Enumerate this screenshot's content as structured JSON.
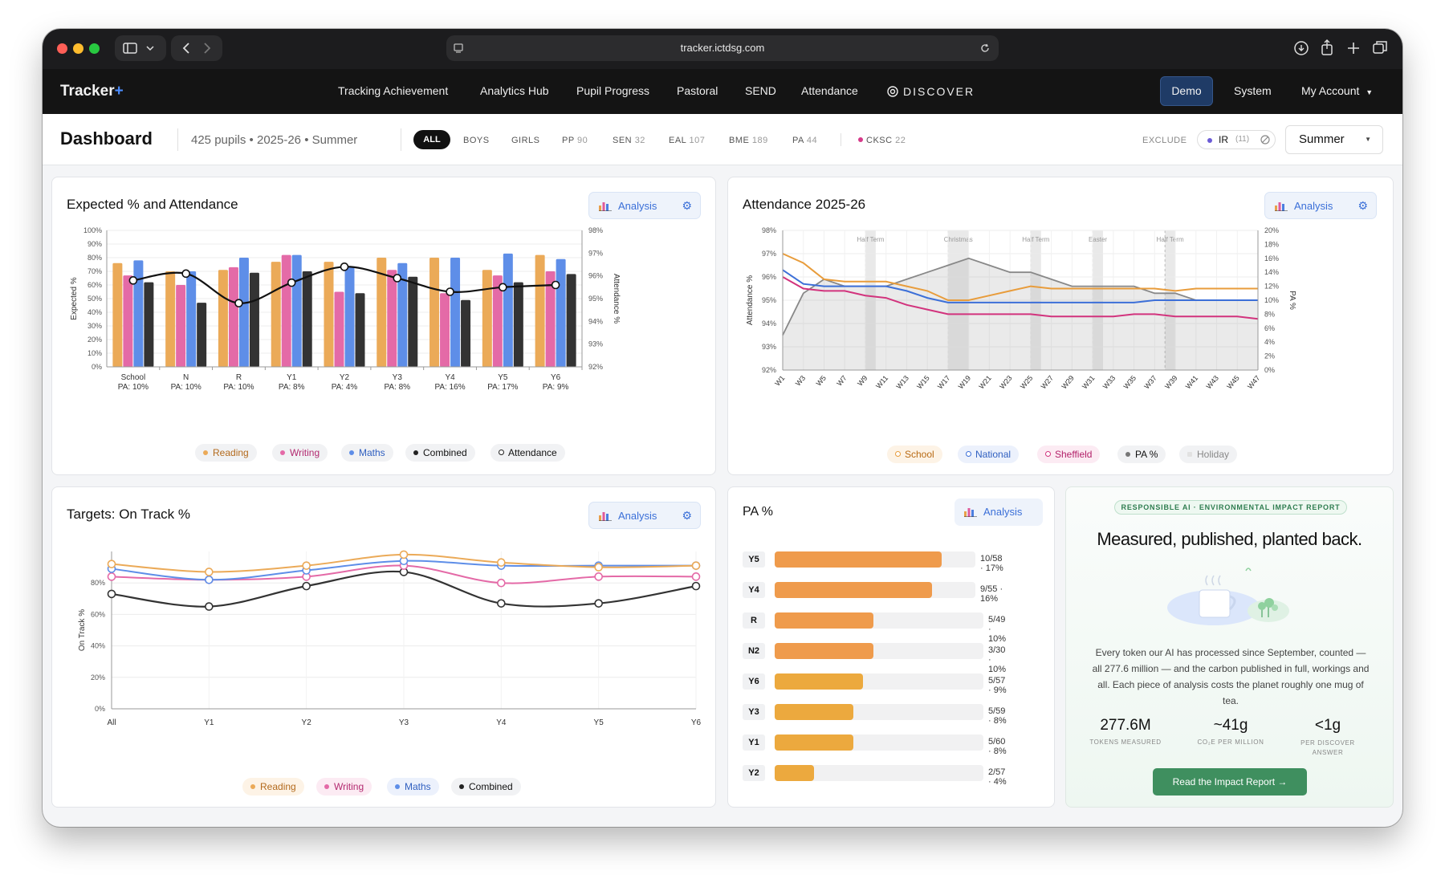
{
  "browser": {
    "url": "tracker.ictdsg.com"
  },
  "app": {
    "logo": "Tracker",
    "logo_plus": "+"
  },
  "nav": {
    "items": [
      "Tracking Achievement",
      "Analytics Hub",
      "Pupil Progress",
      "Pastoral",
      "SEND",
      "Attendance"
    ],
    "discover": "DISCOVER",
    "demo": "Demo",
    "system": "System",
    "account": "My Account"
  },
  "subheader": {
    "title": "Dashboard",
    "meta": "425 pupils • 2025-26 • Summer",
    "filters": [
      {
        "label": "ALL",
        "count": ""
      },
      {
        "label": "BOYS",
        "count": ""
      },
      {
        "label": "GIRLS",
        "count": ""
      },
      {
        "label": "PP",
        "count": "90"
      },
      {
        "label": "SEN",
        "count": "32"
      },
      {
        "label": "EAL",
        "count": "107"
      },
      {
        "label": "BME",
        "count": "189"
      },
      {
        "label": "PA",
        "count": "44"
      },
      {
        "label": "CKSC",
        "count": "22"
      }
    ],
    "exclude_label": "EXCLUDE",
    "exclude_tag": "IR",
    "exclude_count": "(11)",
    "term": "Summer",
    "colors": {
      "cksc_dot": "#d63a8a",
      "ir_dot": "#6b5bd6"
    }
  },
  "analysis_label": "Analysis",
  "colors": {
    "reading": "#ebaa58",
    "writing": "#e46aa7",
    "maths": "#5e8ee8",
    "combined": "#333333",
    "school": "#e89c3b",
    "national": "#3c6fd8",
    "sheffield": "#d2337d",
    "pa": "#888888",
    "pa_bar_high": "#ef9b4c",
    "pa_bar_low": "#eca93e",
    "accent_green": "#3f8f5f"
  },
  "chart_data": [
    {
      "type": "bar",
      "title": "Expected % and Attendance",
      "ylabel": "Expected %",
      "y2label": "Attendance %",
      "ylim": [
        0,
        100
      ],
      "y2lim": [
        92,
        98
      ],
      "yticks": [
        "0%",
        "10%",
        "20%",
        "30%",
        "40%",
        "50%",
        "60%",
        "70%",
        "80%",
        "90%",
        "100%"
      ],
      "y2ticks": [
        "92%",
        "93%",
        "94%",
        "95%",
        "96%",
        "97%",
        "98%"
      ],
      "categories": [
        "School",
        "N",
        "R",
        "Y1",
        "Y2",
        "Y3",
        "Y4",
        "Y5",
        "Y6"
      ],
      "subcategories": [
        "PA: 10%",
        "PA: 10%",
        "PA: 10%",
        "PA: 8%",
        "PA: 4%",
        "PA: 8%",
        "PA: 16%",
        "PA: 17%",
        "PA: 9%"
      ],
      "series": [
        {
          "name": "Reading",
          "values": [
            76,
            70,
            71,
            77,
            77,
            80,
            80,
            71,
            82
          ]
        },
        {
          "name": "Writing",
          "values": [
            67,
            60,
            73,
            82,
            55,
            71,
            54,
            67,
            70
          ]
        },
        {
          "name": "Maths",
          "values": [
            78,
            70,
            80,
            82,
            73,
            76,
            80,
            83,
            79
          ]
        },
        {
          "name": "Combined",
          "values": [
            62,
            47,
            69,
            70,
            54,
            66,
            49,
            62,
            68
          ]
        },
        {
          "name": "Attendance",
          "values": [
            95.8,
            96.1,
            94.8,
            95.7,
            96.4,
            95.9,
            95.3,
            95.5,
            95.6
          ]
        }
      ],
      "legend_position": "bottom"
    },
    {
      "type": "line",
      "title": "Attendance 2025-26",
      "ylabel": "Attendance %",
      "y2label": "PA %",
      "ylim": [
        92,
        98
      ],
      "y2lim": [
        0,
        20
      ],
      "yticks": [
        "92%",
        "93%",
        "94%",
        "95%",
        "96%",
        "97%",
        "98%"
      ],
      "y2ticks": [
        "0%",
        "2%",
        "4%",
        "6%",
        "8%",
        "10%",
        "12%",
        "14%",
        "16%",
        "18%",
        "20%"
      ],
      "x": [
        "W1",
        "W3",
        "W5",
        "W7",
        "W9",
        "W11",
        "W13",
        "W15",
        "W17",
        "W19",
        "W21",
        "W23",
        "W25",
        "W27",
        "W29",
        "W31",
        "W33",
        "W35",
        "W37",
        "W39",
        "W41",
        "W43",
        "W45",
        "W47"
      ],
      "holidays": [
        "Half Term",
        "Christmas",
        "Half Term",
        "Easter",
        "Half Term"
      ],
      "series": [
        {
          "name": "School",
          "values": [
            97.0,
            96.6,
            95.9,
            95.8,
            95.8,
            95.8,
            95.6,
            95.4,
            95.0,
            95.0,
            95.2,
            95.4,
            95.6,
            95.5,
            95.5,
            95.5,
            95.5,
            95.5,
            95.5,
            95.4,
            95.5,
            95.5,
            95.5,
            95.5
          ]
        },
        {
          "name": "National",
          "values": [
            96.3,
            95.7,
            95.6,
            95.6,
            95.6,
            95.6,
            95.4,
            95.1,
            94.9,
            94.9,
            94.9,
            94.9,
            94.9,
            94.9,
            94.9,
            94.9,
            94.9,
            94.9,
            95.0,
            95.0,
            95.0,
            95.0,
            95.0,
            95.0
          ]
        },
        {
          "name": "Sheffield",
          "values": [
            96.0,
            95.5,
            95.4,
            95.4,
            95.2,
            95.1,
            94.8,
            94.6,
            94.4,
            94.4,
            94.4,
            94.4,
            94.4,
            94.3,
            94.3,
            94.3,
            94.3,
            94.4,
            94.4,
            94.3,
            94.3,
            94.3,
            94.3,
            94.2
          ]
        },
        {
          "name": "PA %",
          "values": [
            5,
            11,
            13,
            12,
            12,
            12,
            13,
            14,
            15,
            16,
            15,
            14,
            14,
            13,
            12,
            12,
            12,
            12,
            11,
            11,
            10,
            10,
            10,
            10
          ]
        }
      ],
      "legend": [
        "School",
        "National",
        "Sheffield",
        "PA %",
        "Holiday"
      ],
      "legend_position": "bottom"
    },
    {
      "type": "line",
      "title": "Targets: On Track %",
      "ylabel": "On Track %",
      "ylim": [
        0,
        100
      ],
      "yticks": [
        "0%",
        "20%",
        "40%",
        "60%",
        "80%"
      ],
      "x": [
        "All",
        "Y1",
        "Y2",
        "Y3",
        "Y4",
        "Y5",
        "Y6"
      ],
      "series": [
        {
          "name": "Reading",
          "values": [
            92,
            87,
            91,
            98,
            93,
            90,
            91
          ]
        },
        {
          "name": "Writing",
          "values": [
            84,
            82,
            84,
            91,
            80,
            84,
            84
          ]
        },
        {
          "name": "Maths",
          "values": [
            89,
            82,
            88,
            94,
            91,
            91,
            91
          ]
        },
        {
          "name": "Combined",
          "values": [
            73,
            65,
            78,
            87,
            67,
            67,
            78
          ]
        }
      ],
      "legend_position": "bottom"
    },
    {
      "type": "bar",
      "title": "PA %",
      "orientation": "horizontal",
      "categories": [
        "Y5",
        "Y4",
        "R",
        "N2",
        "Y6",
        "Y3",
        "Y1",
        "Y2"
      ],
      "values": [
        17,
        16,
        10,
        10,
        9,
        8,
        8,
        4
      ],
      "labels": [
        "10/58 · 17%",
        "9/55 · 16%",
        "5/49 · 10%",
        "3/30 · 10%",
        "5/57 · 9%",
        "5/59 · 8%",
        "5/60 · 8%",
        "2/57 · 4%"
      ]
    }
  ],
  "impact": {
    "badge": "RESPONSIBLE AI · ENVIRONMENTAL IMPACT REPORT",
    "title": "Measured, published, planted back.",
    "body": "Every token our AI has processed since September, counted — all 277.6 million — and the carbon published in full, workings and all. Each piece of analysis costs the planet roughly one mug of tea.",
    "stats": [
      {
        "value": "277.6M",
        "label": "TOKENS MEASURED"
      },
      {
        "value": "~41g",
        "label": "CO₂E PER MILLION"
      },
      {
        "value": "<1g",
        "label": "PER DISCOVER ANSWER"
      }
    ],
    "cta": "Read the Impact Report",
    "cta_arrow": "→"
  }
}
